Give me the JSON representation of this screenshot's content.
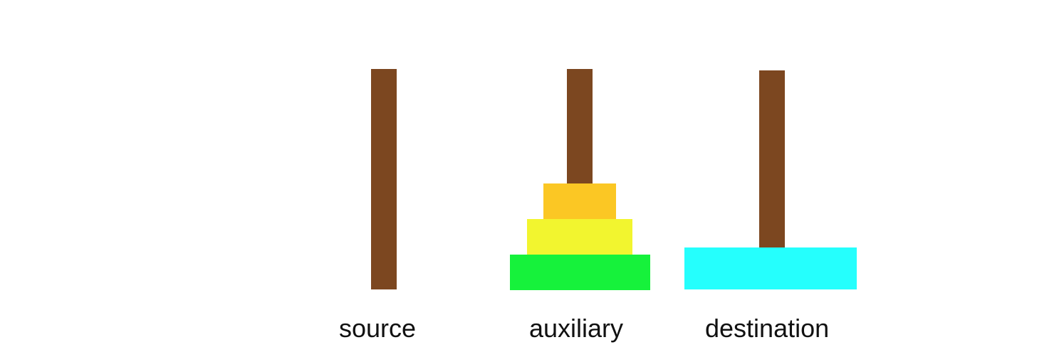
{
  "pegs": [
    {
      "label": "source",
      "disks": []
    },
    {
      "label": "auxiliary",
      "disks": [
        "green",
        "yellow",
        "orange"
      ]
    },
    {
      "label": "destination",
      "disks": [
        "cyan"
      ]
    }
  ],
  "colors": {
    "rod": "#7c4720",
    "orange": "#fbc724",
    "yellow": "#f2f52f",
    "green": "#16f23b",
    "cyan": "#25fffd",
    "background": "#ffffff"
  }
}
